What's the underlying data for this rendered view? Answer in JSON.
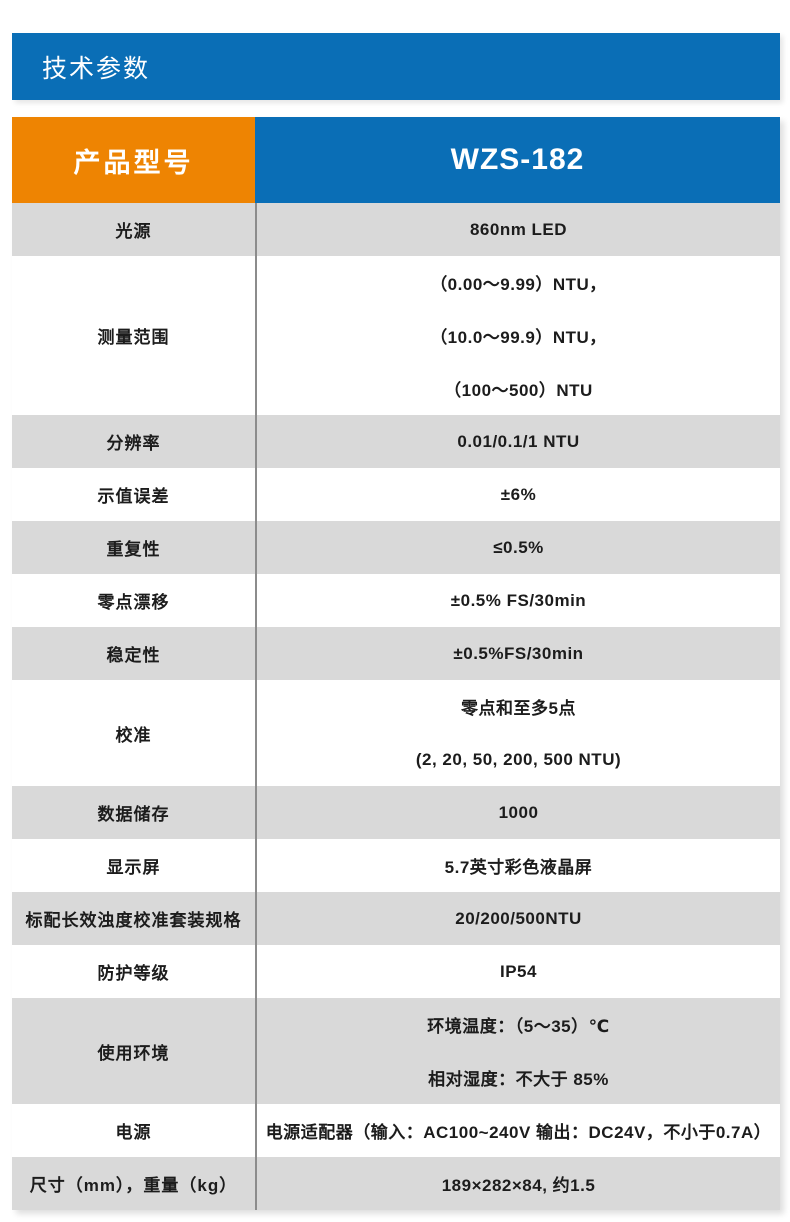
{
  "section": {
    "title": "技术参数"
  },
  "table": {
    "header": {
      "label": "产品型号",
      "value": "WZS-182"
    },
    "rows": [
      {
        "label": "光源",
        "lines": [
          "860nm LED"
        ]
      },
      {
        "label": "测量范围",
        "lines": [
          "（0.00～9.99）NTU，",
          "（10.0～99.9）NTU，",
          "（100～500）NTU"
        ]
      },
      {
        "label": "分辨率",
        "lines": [
          "0.01/0.1/1 NTU"
        ]
      },
      {
        "label": "示值误差",
        "lines": [
          "±6%"
        ]
      },
      {
        "label": "重复性",
        "lines": [
          "≤0.5%"
        ]
      },
      {
        "label": "零点漂移",
        "lines": [
          "±0.5% FS/30min"
        ]
      },
      {
        "label": "稳定性",
        "lines": [
          "±0.5%FS/30min"
        ]
      },
      {
        "label": "校准",
        "lines": [
          "零点和至多5点",
          "(2, 20, 50, 200, 500 NTU)"
        ]
      },
      {
        "label": "数据储存",
        "lines": [
          "1000"
        ]
      },
      {
        "label": "显示屏",
        "lines": [
          "5.7英寸彩色液晶屏"
        ]
      },
      {
        "label": "标配长效浊度校准套装规格",
        "lines": [
          "20/200/500NTU"
        ]
      },
      {
        "label": "防护等级",
        "lines": [
          "IP54"
        ]
      },
      {
        "label": "使用环境",
        "lines": [
          "环境温度：（5～35）℃",
          "相对湿度：不大于 85%"
        ]
      },
      {
        "label": "电源",
        "lines": [
          "电源适配器（输入：AC100~240V 输出：DC24V，不小于0.7A）"
        ]
      },
      {
        "label": "尺寸（mm），重量（kg）",
        "lines": [
          "189×282×84, 约1.5"
        ]
      }
    ]
  },
  "colors": {
    "header_blue": "#0a6eb6",
    "header_orange": "#ee8402",
    "row_gray": "#d9d9d9",
    "divider_gray": "#8c8c8c",
    "text": "#1c1c1c"
  }
}
